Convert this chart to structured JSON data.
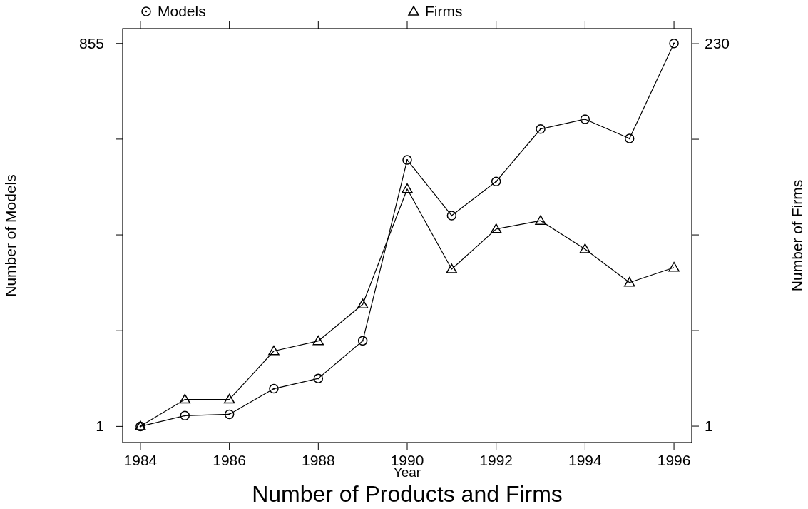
{
  "chart_data": {
    "type": "line",
    "title": "Number of Products and Firms",
    "xlabel": "Year",
    "ylabel": "Number of Models",
    "y2label": "Number of Firms",
    "x": [
      1984,
      1985,
      1986,
      1987,
      1988,
      1989,
      1990,
      1991,
      1992,
      1993,
      1994,
      1995,
      1996
    ],
    "series": [
      {
        "name": "Models",
        "color": "#000000",
        "marker": "circle",
        "values": [
          1,
          25,
          28,
          85,
          108,
          192,
          595,
          471,
          547,
          664,
          686,
          643,
          855
        ]
      },
      {
        "name": "Firms",
        "color": "#000000",
        "marker": "triangle",
        "axis": "y2",
        "values": [
          1,
          17,
          17,
          46,
          52,
          74,
          143,
          95,
          119,
          124,
          107,
          87,
          96
        ]
      }
    ],
    "xlim": [
      1983.6,
      1996.4
    ],
    "xticks": [
      1984,
      1986,
      1988,
      1990,
      1992,
      1994,
      1996
    ],
    "ylim": [
      -35,
      888
    ],
    "yticks": [
      1,
      {
        "value": 214.5,
        "label": null
      },
      {
        "value": 428,
        "label": null
      },
      {
        "value": 641.5,
        "label": null
      },
      855
    ],
    "y2lim": [
      -8.8,
      239
    ],
    "y2ticks": [
      1,
      {
        "value": 58.25,
        "label": null
      },
      {
        "value": 115.5,
        "label": null
      },
      {
        "value": 172.75,
        "label": null
      },
      230
    ],
    "legend": "top",
    "grid": false,
    "line_style": "solid"
  }
}
